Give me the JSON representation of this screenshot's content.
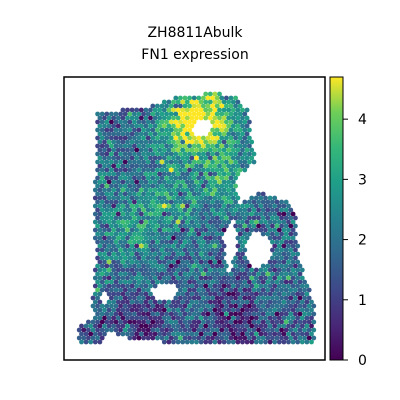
{
  "chart_data": {
    "type": "scatter",
    "title_lines": [
      "ZH8811Abulk",
      "FN1 expression"
    ],
    "xlabel": "",
    "ylabel": "",
    "axis_ticks_shown": false,
    "colormap": "viridis",
    "colorbar": {
      "min": 0,
      "max": 4.7,
      "ticks": [
        0,
        1,
        2,
        3,
        4
      ],
      "tick_labels": [
        "0",
        "1",
        "2",
        "3",
        "4"
      ]
    },
    "value_mean": 1.8,
    "hotspots": [
      {
        "x": 0.46,
        "y": 0.82,
        "value": 4.2
      },
      {
        "x": 0.56,
        "y": 0.87,
        "value": 4.0
      },
      {
        "x": 0.62,
        "y": 0.65,
        "value": 3.4
      },
      {
        "x": 0.4,
        "y": 0.55,
        "value": 3.0
      },
      {
        "x": 0.24,
        "y": 0.45,
        "value": 2.9
      },
      {
        "x": 0.28,
        "y": 0.12,
        "value": 0.8
      },
      {
        "x": 0.66,
        "y": 0.14,
        "value": 0.7
      }
    ]
  }
}
